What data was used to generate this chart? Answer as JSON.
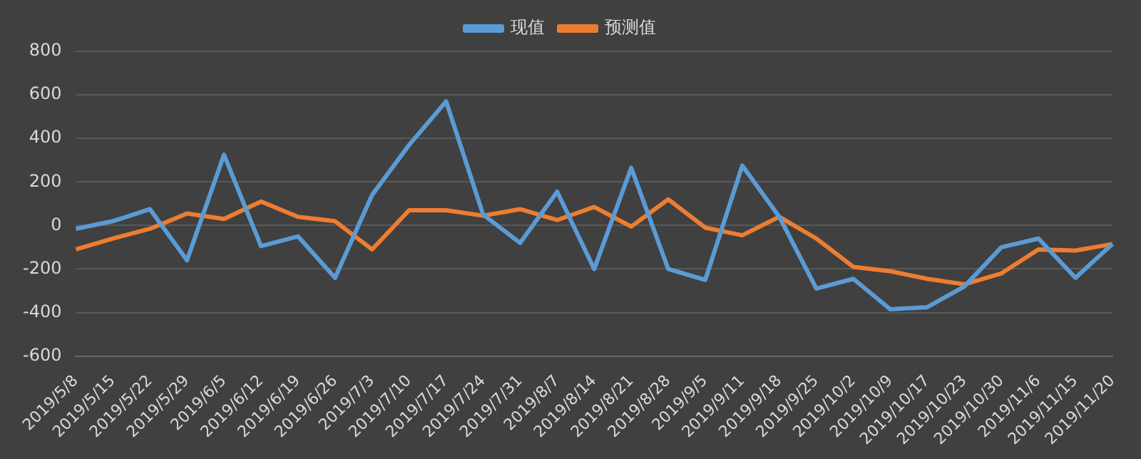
{
  "chart_data": {
    "type": "line",
    "categories": [
      "2019/5/8",
      "2019/5/15",
      "2019/5/22",
      "2019/5/29",
      "2019/6/5",
      "2019/6/12",
      "2019/6/19",
      "2019/6/26",
      "2019/7/3",
      "2019/7/10",
      "2019/7/17",
      "2019/7/24",
      "2019/7/31",
      "2019/8/7",
      "2019/8/14",
      "2019/8/21",
      "2019/8/28",
      "2019/9/5",
      "2019/9/11",
      "2019/9/18",
      "2019/9/25",
      "2019/10/2",
      "2019/10/9",
      "2019/10/17",
      "2019/10/23",
      "2019/10/30",
      "2019/11/6",
      "2019/11/15",
      "2019/11/20"
    ],
    "series": [
      {
        "name": "现值",
        "color": "#5b9bd5",
        "values": [
          -15,
          20,
          75,
          -160,
          325,
          -95,
          -50,
          -240,
          140,
          370,
          570,
          50,
          -80,
          155,
          -200,
          265,
          -200,
          -250,
          275,
          40,
          -290,
          -245,
          -385,
          -375,
          -280,
          -100,
          -60,
          -240,
          -85
        ]
      },
      {
        "name": "预测值",
        "color": "#ed7d31",
        "values": [
          -110,
          -60,
          -15,
          55,
          30,
          110,
          40,
          20,
          -110,
          70,
          70,
          45,
          75,
          25,
          85,
          -5,
          120,
          -10,
          -45,
          40,
          -60,
          -190,
          -210,
          -245,
          -270,
          -220,
          -110,
          -115,
          -85
        ]
      }
    ],
    "ylim": [
      -600,
      800
    ],
    "yticks": [
      -600,
      -400,
      -200,
      0,
      200,
      400,
      600,
      800
    ],
    "grid": "y",
    "legend": "top",
    "marker": "none",
    "line_style": "solid"
  }
}
